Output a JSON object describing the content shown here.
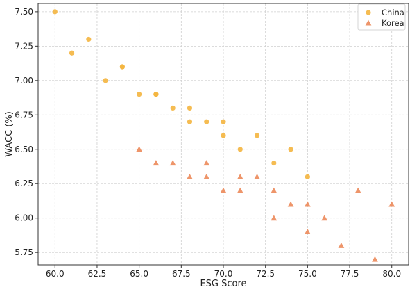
{
  "chart_data": {
    "type": "scatter",
    "title": "",
    "xlabel": "ESG Score",
    "ylabel": "WACC (%)",
    "xlim": [
      59.0,
      81.0
    ],
    "ylim": [
      5.66,
      7.56
    ],
    "xticks": [
      "60.0",
      "62.5",
      "65.0",
      "67.5",
      "70.0",
      "72.5",
      "75.0",
      "77.5",
      "80.0"
    ],
    "yticks": [
      "5.75",
      "6.00",
      "6.25",
      "6.50",
      "6.75",
      "7.00",
      "7.25",
      "7.50"
    ],
    "grid": true,
    "legend_position": "top-right",
    "series": [
      {
        "name": "China",
        "marker": "circle",
        "color": "#f4b53f",
        "points": [
          {
            "x": 60,
            "y": 7.5
          },
          {
            "x": 61,
            "y": 7.2
          },
          {
            "x": 62,
            "y": 7.3
          },
          {
            "x": 63,
            "y": 7.0
          },
          {
            "x": 64,
            "y": 7.1
          },
          {
            "x": 64,
            "y": 7.1
          },
          {
            "x": 65,
            "y": 6.9
          },
          {
            "x": 66,
            "y": 6.9
          },
          {
            "x": 66,
            "y": 6.9
          },
          {
            "x": 67,
            "y": 6.8
          },
          {
            "x": 68,
            "y": 6.8
          },
          {
            "x": 68,
            "y": 6.7
          },
          {
            "x": 69,
            "y": 6.7
          },
          {
            "x": 70,
            "y": 6.7
          },
          {
            "x": 70,
            "y": 6.6
          },
          {
            "x": 71,
            "y": 6.5
          },
          {
            "x": 72,
            "y": 6.6
          },
          {
            "x": 73,
            "y": 6.4
          },
          {
            "x": 74,
            "y": 6.5
          },
          {
            "x": 75,
            "y": 6.3
          }
        ]
      },
      {
        "name": "Korea",
        "marker": "triangle",
        "color": "#ec8a5a",
        "points": [
          {
            "x": 65,
            "y": 6.5
          },
          {
            "x": 66,
            "y": 6.4
          },
          {
            "x": 67,
            "y": 6.4
          },
          {
            "x": 68,
            "y": 6.3
          },
          {
            "x": 69,
            "y": 6.4
          },
          {
            "x": 69,
            "y": 6.3
          },
          {
            "x": 70,
            "y": 6.2
          },
          {
            "x": 71,
            "y": 6.3
          },
          {
            "x": 71,
            "y": 6.2
          },
          {
            "x": 72,
            "y": 6.3
          },
          {
            "x": 73,
            "y": 6.2
          },
          {
            "x": 73,
            "y": 6.0
          },
          {
            "x": 74,
            "y": 6.1
          },
          {
            "x": 75,
            "y": 6.1
          },
          {
            "x": 75,
            "y": 5.9
          },
          {
            "x": 76,
            "y": 6.0
          },
          {
            "x": 77,
            "y": 5.8
          },
          {
            "x": 78,
            "y": 6.2
          },
          {
            "x": 79,
            "y": 5.7
          },
          {
            "x": 80,
            "y": 6.1
          }
        ]
      }
    ]
  }
}
